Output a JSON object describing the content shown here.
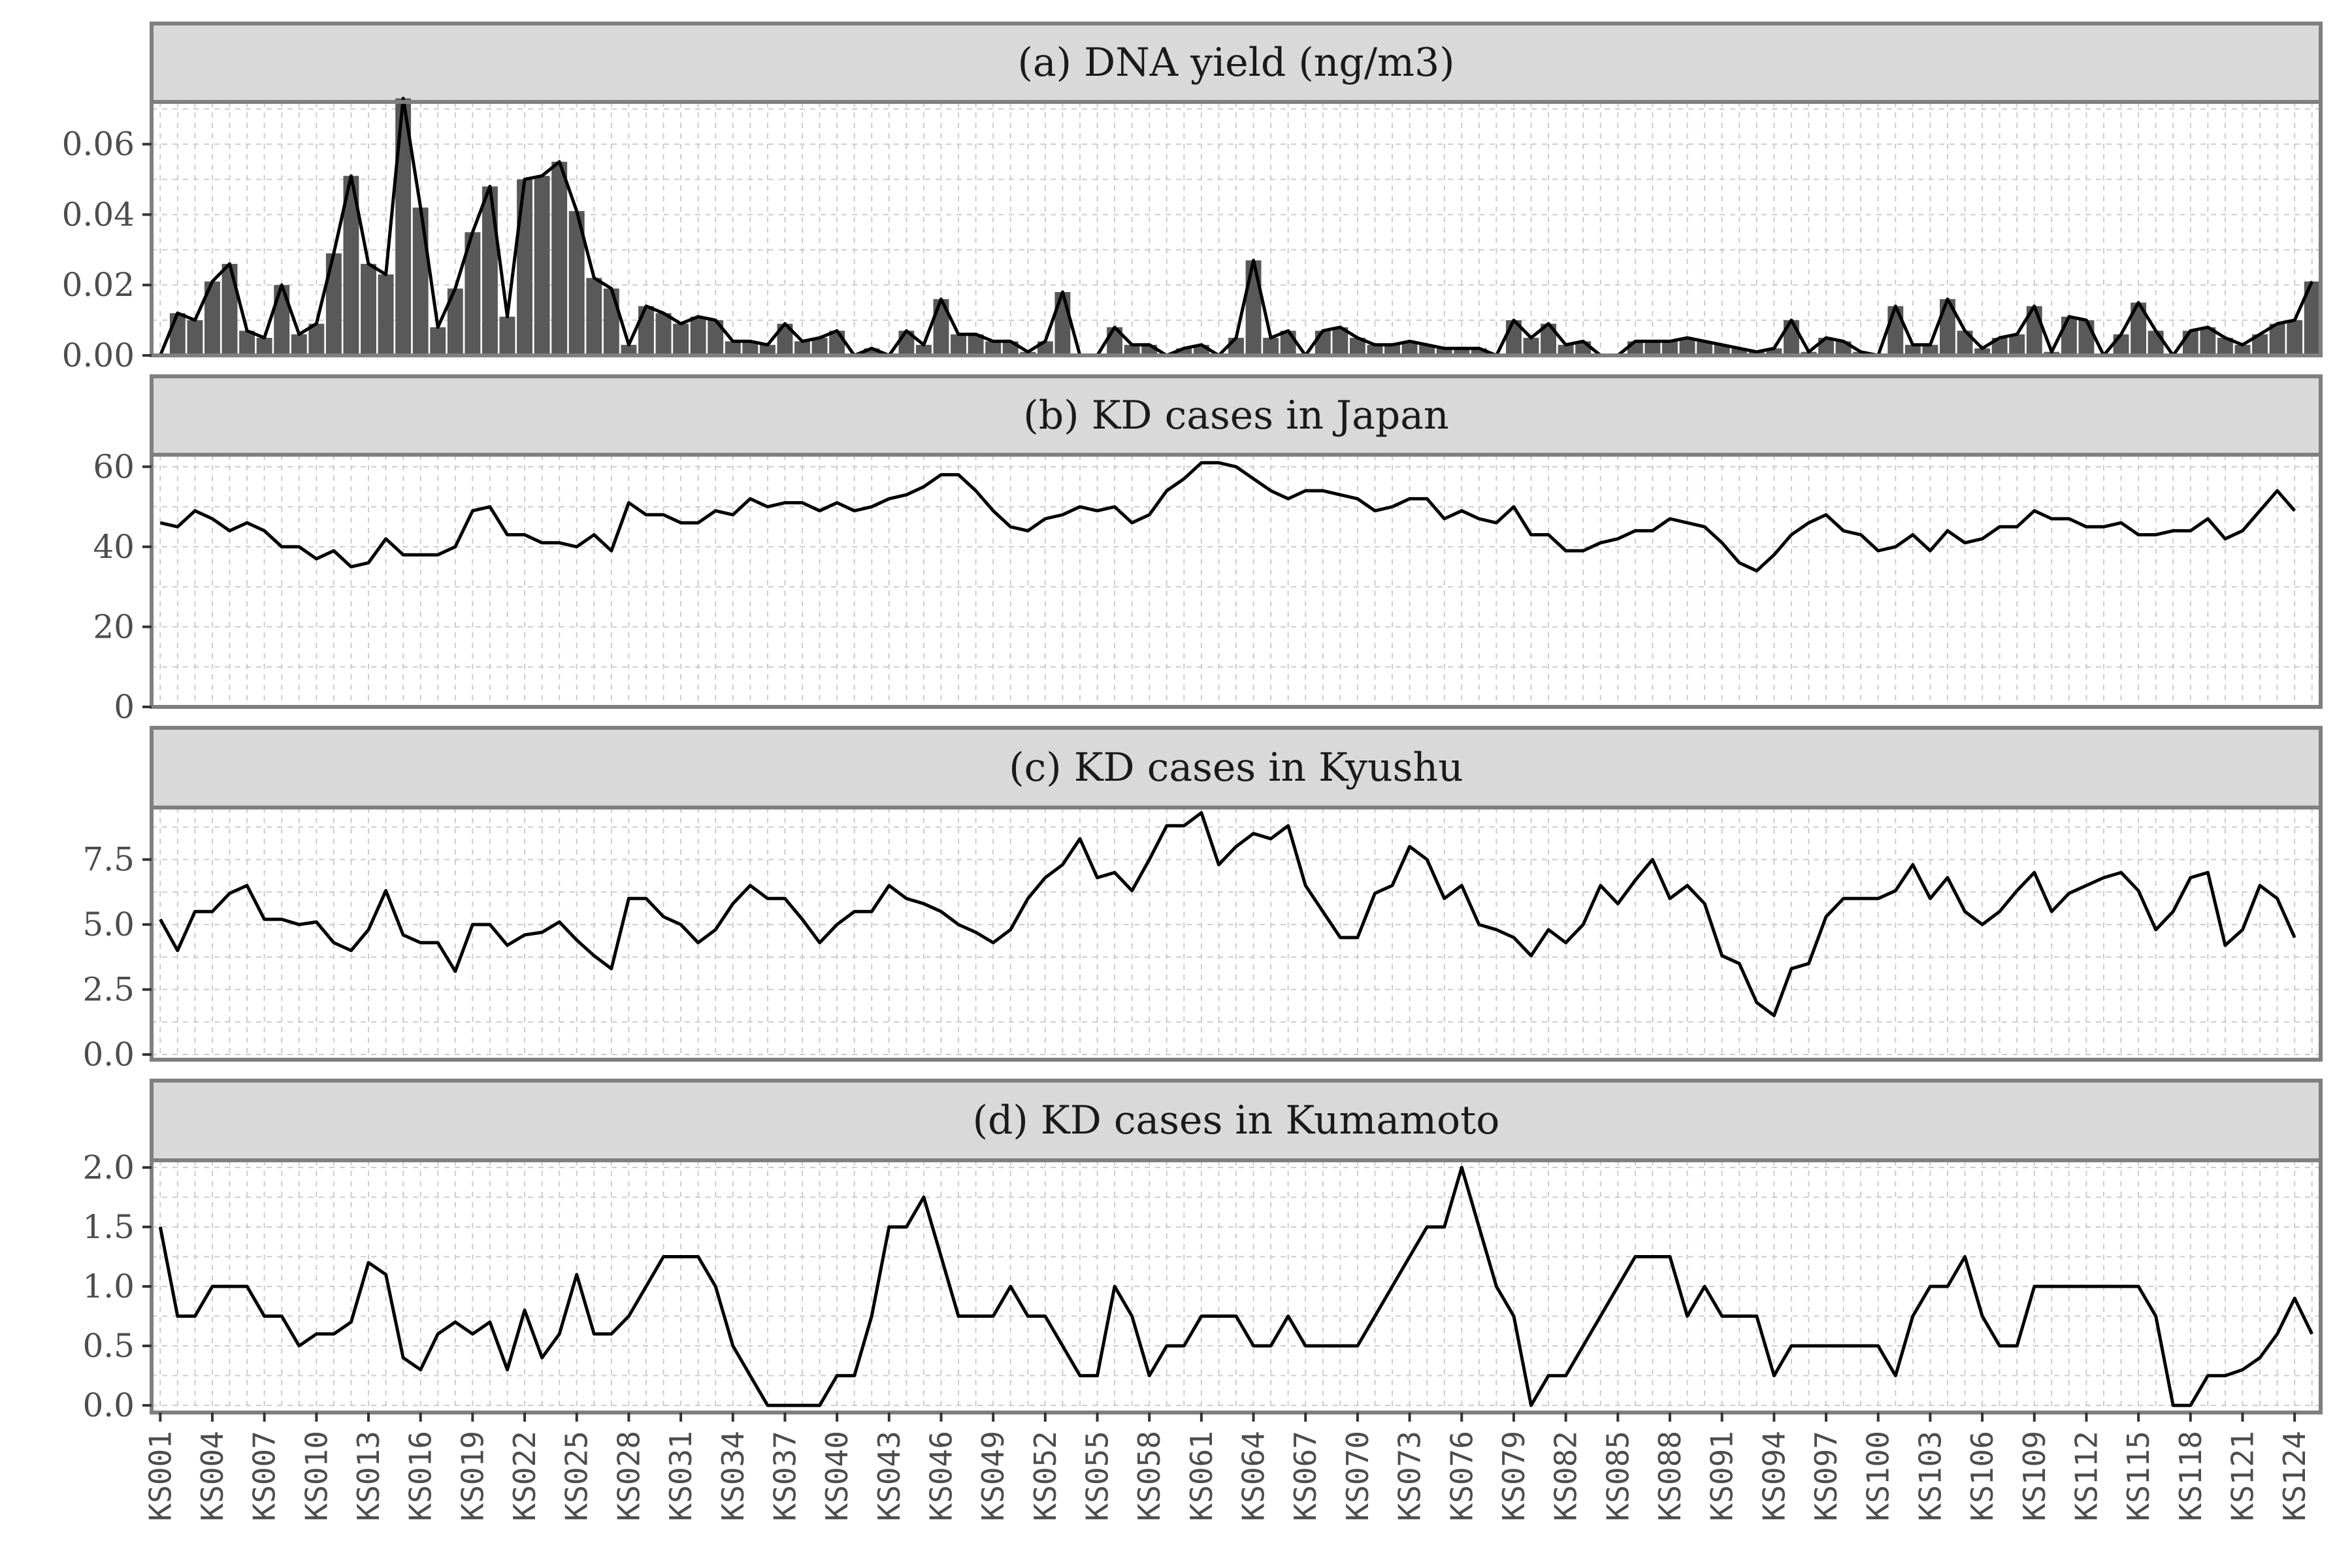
{
  "chart_data": {
    "type": "line",
    "x_tick_labels": [
      "KS001",
      "KS004",
      "KS007",
      "KS010",
      "KS013",
      "KS016",
      "KS019",
      "KS022",
      "KS025",
      "KS028",
      "KS031",
      "KS034",
      "KS037",
      "KS040",
      "KS043",
      "KS046",
      "KS049",
      "KS052",
      "KS055",
      "KS058",
      "KS061",
      "KS064",
      "KS067",
      "KS070",
      "KS073",
      "KS076",
      "KS079",
      "KS082",
      "KS085",
      "KS088",
      "KS091",
      "KS094",
      "KS097",
      "KS100",
      "KS103",
      "KS106",
      "KS109",
      "KS112",
      "KS115",
      "KS118",
      "KS121",
      "KS124"
    ],
    "grid": true,
    "panels": [
      {
        "title": "(a) DNA yield (ng/m3)",
        "type": "bar+line",
        "ylim": [
          0,
          0.072
        ],
        "yticks": [
          0,
          0.02,
          0.04,
          0.06
        ],
        "ytick_labels": [
          "0.00",
          "0.02",
          "0.04",
          "0.06"
        ],
        "bar_color": "#595959",
        "values": [
          0.0,
          0.012,
          0.01,
          0.021,
          0.026,
          0.007,
          0.005,
          0.02,
          0.006,
          0.009,
          0.029,
          0.051,
          0.026,
          0.023,
          0.073,
          0.042,
          0.008,
          0.019,
          0.035,
          0.048,
          0.011,
          0.05,
          0.051,
          0.055,
          0.041,
          0.022,
          0.019,
          0.003,
          0.014,
          0.012,
          0.009,
          0.011,
          0.01,
          0.004,
          0.004,
          0.003,
          0.009,
          0.004,
          0.005,
          0.007,
          0.0,
          0.002,
          0.0,
          0.007,
          0.003,
          0.016,
          0.006,
          0.006,
          0.004,
          0.004,
          0.001,
          0.004,
          0.018,
          0.0,
          0.0,
          0.008,
          0.003,
          0.003,
          0.0,
          0.002,
          0.003,
          0.0,
          0.005,
          0.027,
          0.005,
          0.007,
          0.0,
          0.007,
          0.008,
          0.005,
          0.003,
          0.003,
          0.004,
          0.003,
          0.002,
          0.002,
          0.002,
          0.0,
          0.01,
          0.005,
          0.009,
          0.003,
          0.004,
          0.0,
          0.0,
          0.004,
          0.004,
          0.004,
          0.005,
          0.004,
          0.003,
          0.002,
          0.001,
          0.002,
          0.01,
          0.001,
          0.005,
          0.004,
          0.001,
          0.0,
          0.014,
          0.003,
          0.003,
          0.016,
          0.007,
          0.002,
          0.005,
          0.006,
          0.014,
          0.001,
          0.011,
          0.01,
          0.0,
          0.006,
          0.015,
          0.007,
          0.0,
          0.007,
          0.008,
          0.005,
          0.003,
          0.006,
          0.009,
          0.01,
          0.021
        ]
      },
      {
        "title": "(b) KD cases in Japan",
        "type": "line",
        "ylim": [
          0,
          63
        ],
        "yticks": [
          0,
          20,
          40,
          60
        ],
        "ytick_labels": [
          "0",
          "20",
          "40",
          "60"
        ],
        "values": [
          46,
          45,
          49,
          47,
          44,
          46,
          44,
          40,
          40,
          37,
          39,
          35,
          36,
          42,
          38,
          38,
          38,
          40,
          49,
          50,
          43,
          43,
          41,
          41,
          40,
          43,
          39,
          51,
          48,
          48,
          46,
          46,
          49,
          48,
          52,
          50,
          51,
          51,
          49,
          51,
          49,
          50,
          52,
          53,
          55,
          58,
          58,
          54,
          49,
          45,
          44,
          47,
          48,
          50,
          49,
          50,
          46,
          48,
          54,
          57,
          61,
          61,
          60,
          57,
          54,
          52,
          54,
          54,
          53,
          52,
          49,
          50,
          52,
          52,
          47,
          49,
          47,
          46,
          50,
          43,
          43,
          39,
          39,
          41,
          42,
          44,
          44,
          47,
          46,
          45,
          41,
          36,
          34,
          38,
          43,
          46,
          48,
          44,
          43,
          39,
          40,
          43,
          39,
          44,
          41,
          42,
          45,
          45,
          49,
          47,
          47,
          45,
          45,
          46,
          43,
          43,
          44,
          44,
          47,
          42,
          44,
          49,
          54,
          49
        ]
      },
      {
        "title": "(c) KD cases in Kyushu",
        "type": "line",
        "ylim": [
          -0.2,
          9.5
        ],
        "yticks": [
          0,
          2.5,
          5,
          7.5
        ],
        "ytick_labels": [
          "0.0",
          "2.5",
          "5.0",
          "7.5"
        ],
        "values": [
          5.2,
          4.0,
          5.5,
          5.5,
          6.2,
          6.5,
          5.2,
          5.2,
          5.0,
          5.1,
          4.3,
          4.0,
          4.8,
          6.3,
          4.6,
          4.3,
          4.3,
          3.2,
          5.0,
          5.0,
          4.2,
          4.6,
          4.7,
          5.1,
          4.4,
          3.8,
          3.3,
          6.0,
          6.0,
          5.3,
          5.0,
          4.3,
          4.8,
          5.8,
          6.5,
          6.0,
          6.0,
          5.2,
          4.3,
          5.0,
          5.5,
          5.5,
          6.5,
          6.0,
          5.8,
          5.5,
          5.0,
          4.7,
          4.3,
          4.8,
          6.0,
          6.8,
          7.3,
          8.3,
          6.8,
          7.0,
          6.3,
          7.5,
          8.8,
          8.8,
          9.3,
          7.3,
          8.0,
          8.5,
          8.3,
          8.8,
          6.5,
          5.5,
          4.5,
          4.5,
          6.2,
          6.5,
          8.0,
          7.5,
          6.0,
          6.5,
          5.0,
          4.8,
          4.5,
          3.8,
          4.8,
          4.3,
          5.0,
          6.5,
          5.8,
          6.7,
          7.5,
          6.0,
          6.5,
          5.8,
          3.8,
          3.5,
          2.0,
          1.5,
          3.3,
          3.5,
          5.3,
          6.0,
          6.0,
          6.0,
          6.3,
          7.3,
          6.0,
          6.8,
          5.5,
          5.0,
          5.5,
          6.3,
          7.0,
          5.5,
          6.2,
          6.5,
          6.8,
          7.0,
          6.3,
          4.8,
          5.5,
          6.8,
          7.0,
          4.2,
          4.8,
          6.5,
          6.0,
          4.5
        ]
      },
      {
        "title": "(d) KD cases in Kumamoto",
        "type": "line",
        "ylim": [
          -0.06,
          2.06
        ],
        "yticks": [
          0,
          0.5,
          1,
          1.5,
          2
        ],
        "ytick_labels": [
          "0.0",
          "0.5",
          "1.0",
          "1.5",
          "2.0"
        ],
        "values": [
          1.5,
          0.75,
          0.75,
          1.0,
          1.0,
          1.0,
          0.75,
          0.75,
          0.5,
          0.6,
          0.6,
          0.7,
          1.2,
          1.1,
          0.4,
          0.3,
          0.6,
          0.7,
          0.6,
          0.7,
          0.3,
          0.8,
          0.4,
          0.6,
          1.1,
          0.6,
          0.6,
          0.75,
          1.0,
          1.25,
          1.25,
          1.25,
          1.0,
          0.5,
          0.25,
          0.0,
          0.0,
          0.0,
          0.0,
          0.25,
          0.25,
          0.75,
          1.5,
          1.5,
          1.75,
          1.25,
          0.75,
          0.75,
          0.75,
          1.0,
          0.75,
          0.75,
          0.5,
          0.25,
          0.25,
          1.0,
          0.75,
          0.25,
          0.5,
          0.5,
          0.75,
          0.75,
          0.75,
          0.5,
          0.5,
          0.75,
          0.5,
          0.5,
          0.5,
          0.5,
          0.75,
          1.0,
          1.25,
          1.5,
          1.5,
          2.0,
          1.5,
          1.0,
          0.75,
          0.0,
          0.25,
          0.25,
          0.5,
          0.75,
          1.0,
          1.25,
          1.25,
          1.25,
          0.75,
          1.0,
          0.75,
          0.75,
          0.75,
          0.25,
          0.5,
          0.5,
          0.5,
          0.5,
          0.5,
          0.5,
          0.25,
          0.75,
          1.0,
          1.0,
          1.25,
          0.75,
          0.5,
          0.5,
          1.0,
          1.0,
          1.0,
          1.0,
          1.0,
          1.0,
          1.0,
          0.75,
          0.0,
          0.0,
          0.25,
          0.25,
          0.3,
          0.4,
          0.6,
          0.9,
          0.6
        ]
      }
    ]
  }
}
